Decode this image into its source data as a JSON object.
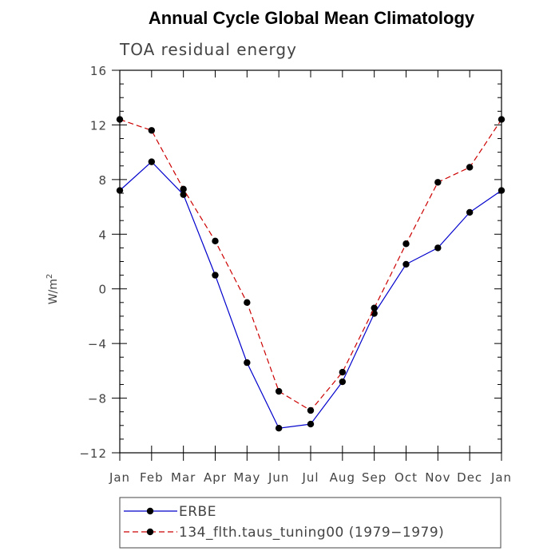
{
  "chart_data": {
    "type": "line",
    "title": "Annual Cycle Global Mean Climatology",
    "subtitle": "TOA residual energy",
    "ylabel_main": "W/m",
    "ylabel_sup": "2",
    "xlabel": "",
    "categories": [
      "Jan",
      "Feb",
      "Mar",
      "Apr",
      "May",
      "Jun",
      "Jul",
      "Aug",
      "Sep",
      "Oct",
      "Nov",
      "Dec",
      "Jan"
    ],
    "ylim": [
      -12,
      16
    ],
    "yticks": [
      -12,
      -8,
      -4,
      0,
      4,
      8,
      12,
      16
    ],
    "ytick_labels": [
      "−12",
      "−8",
      "−4",
      "0",
      "4",
      "8",
      "12",
      "16"
    ],
    "grid": false,
    "legend_position": "bottom",
    "series": [
      {
        "name": "ERBE",
        "color": "#0000cc",
        "dash": "solid",
        "values": [
          7.2,
          9.3,
          6.9,
          1.0,
          -5.4,
          -10.2,
          -9.9,
          -6.8,
          -1.8,
          1.8,
          3.0,
          5.6,
          7.2
        ]
      },
      {
        "name": "134_flth.taus_tuning00 (1979−1979)",
        "color": "#cc0000",
        "dash": "dashed",
        "values": [
          12.4,
          11.6,
          7.3,
          3.5,
          -1.0,
          -7.5,
          -8.9,
          -6.1,
          -1.4,
          3.3,
          7.8,
          8.9,
          12.4
        ]
      }
    ]
  }
}
